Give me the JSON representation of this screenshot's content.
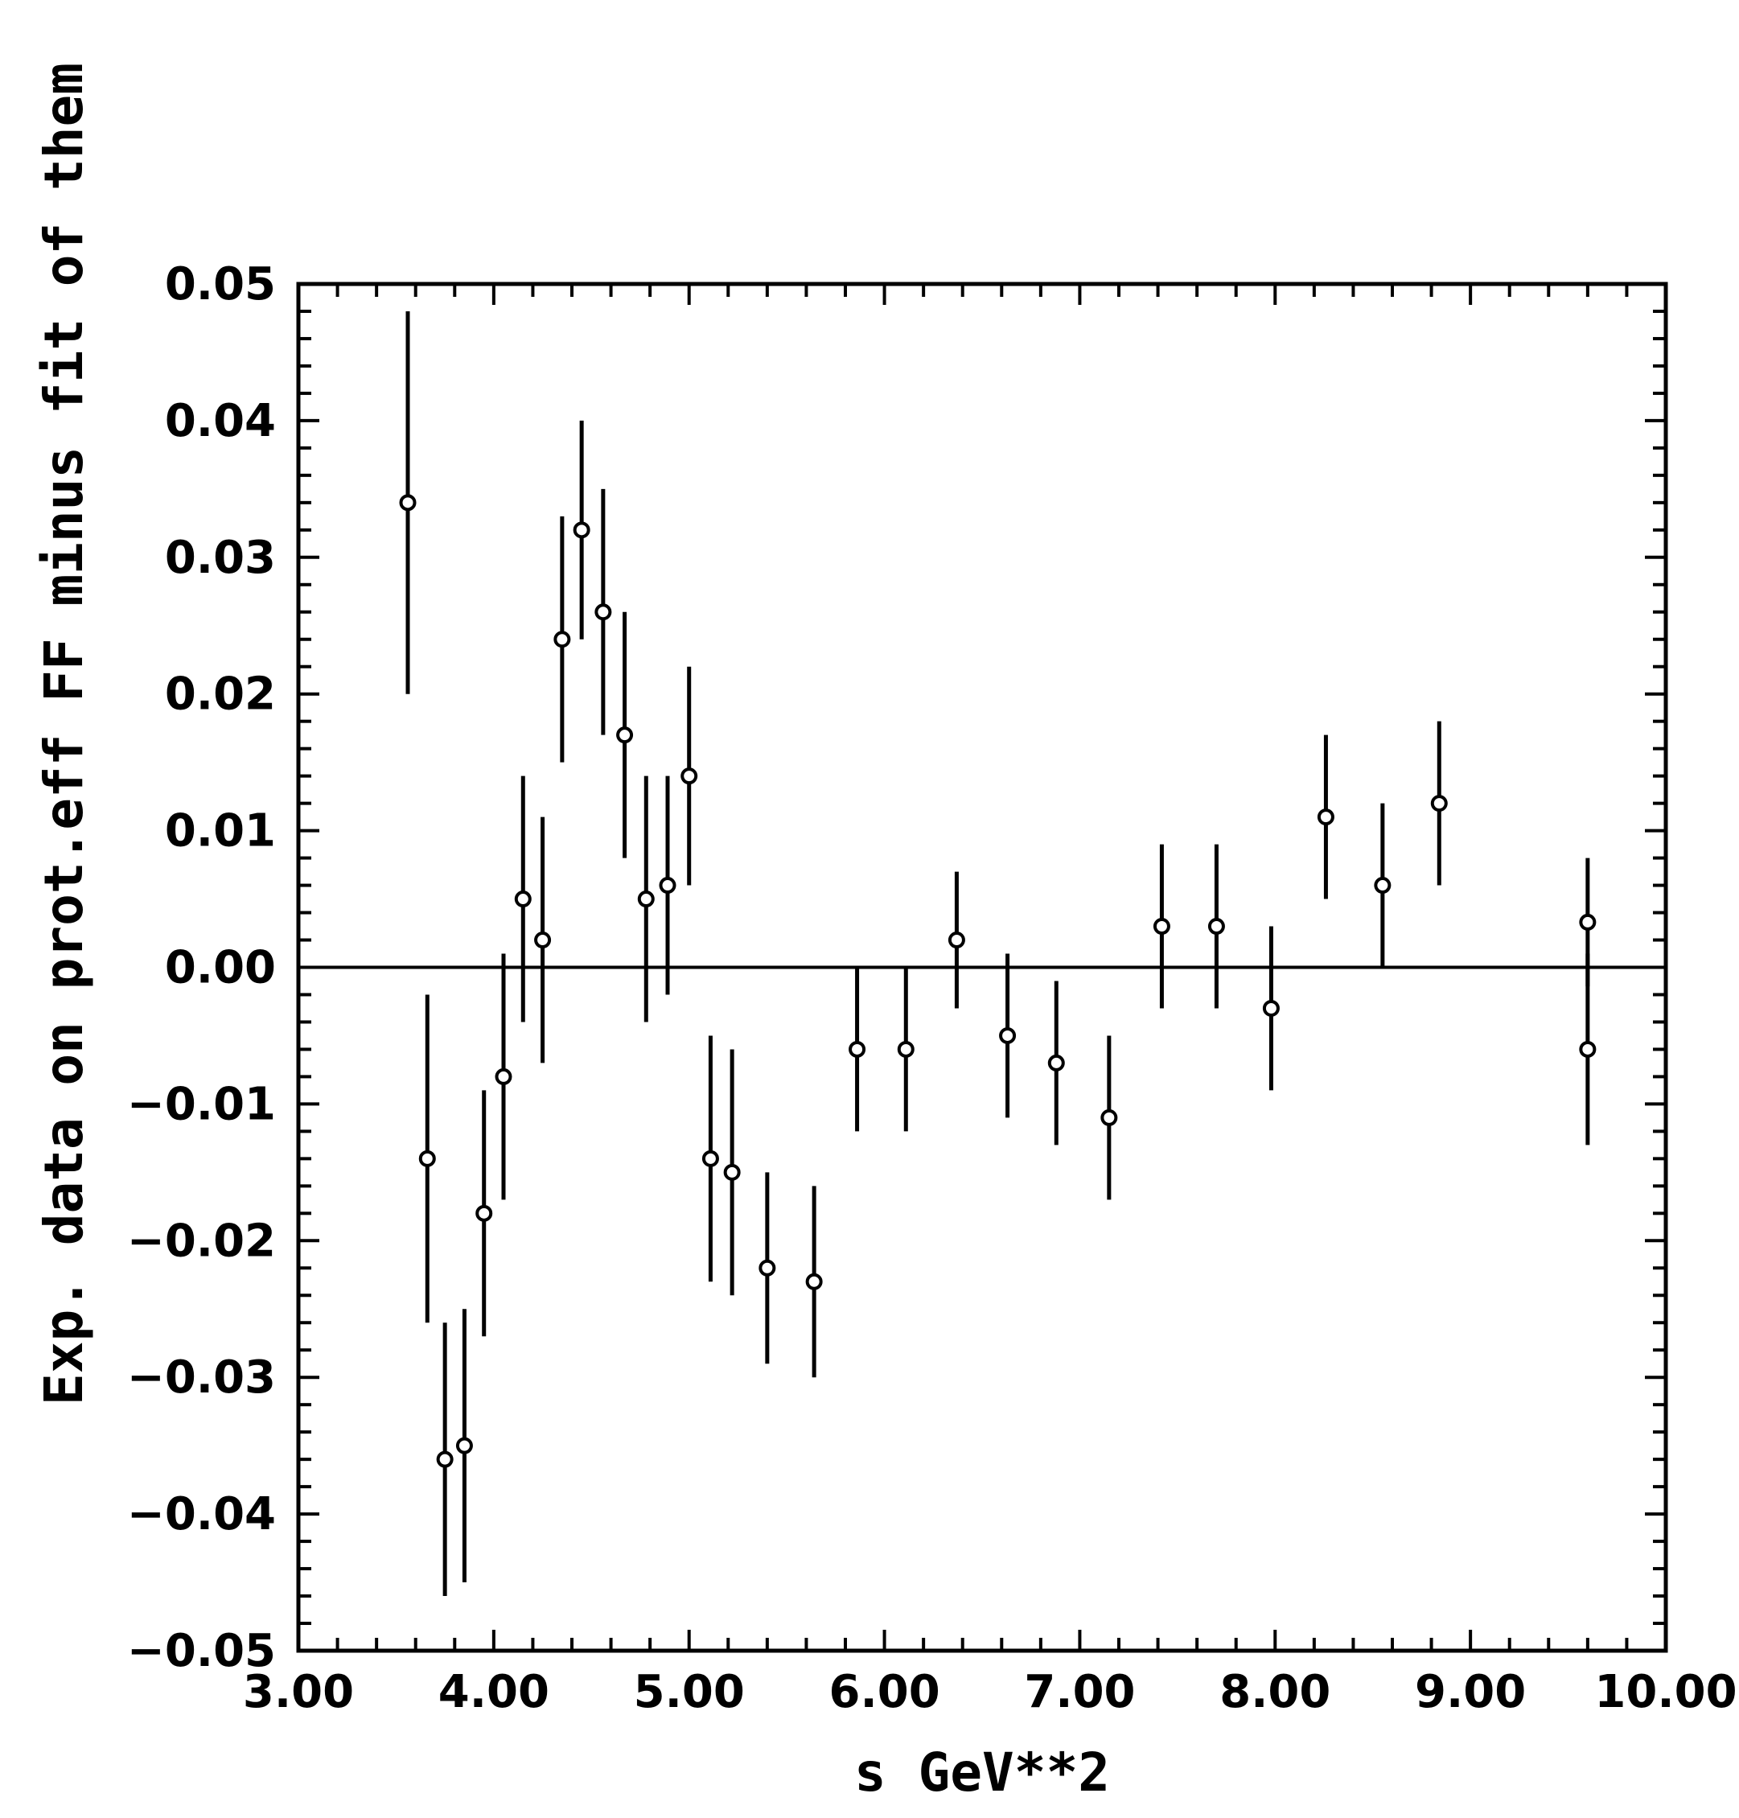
{
  "chart_data": {
    "type": "scatter",
    "xlabel": "s GeV**2",
    "ylabel": "Exp. data on prot.eff FF minus fit of them",
    "xlim": [
      3.0,
      10.0
    ],
    "ylim": [
      -0.05,
      0.05
    ],
    "xticks": [
      "3.00",
      "4.00",
      "5.00",
      "6.00",
      "7.00",
      "8.00",
      "9.00",
      "10.00"
    ],
    "yticks": [
      "0.05",
      "0.04",
      "0.03",
      "0.02",
      "0.01",
      "0.00",
      "−0.01",
      "−0.02",
      "−0.03",
      "−0.04",
      "−0.05"
    ],
    "grid": false,
    "reference_line_y": 0.0,
    "points": [
      {
        "x": 3.56,
        "y": 0.034,
        "err": 0.014
      },
      {
        "x": 3.66,
        "y": -0.014,
        "err": 0.012
      },
      {
        "x": 3.75,
        "y": -0.036,
        "err": 0.01
      },
      {
        "x": 3.85,
        "y": -0.035,
        "err": 0.01
      },
      {
        "x": 3.95,
        "y": -0.018,
        "err": 0.009
      },
      {
        "x": 4.05,
        "y": -0.008,
        "err": 0.009
      },
      {
        "x": 4.15,
        "y": 0.005,
        "err": 0.009
      },
      {
        "x": 4.25,
        "y": 0.002,
        "err": 0.009
      },
      {
        "x": 4.35,
        "y": 0.024,
        "err": 0.009
      },
      {
        "x": 4.45,
        "y": 0.032,
        "err": 0.008
      },
      {
        "x": 4.56,
        "y": 0.026,
        "err": 0.009
      },
      {
        "x": 4.67,
        "y": 0.017,
        "err": 0.009
      },
      {
        "x": 4.78,
        "y": 0.005,
        "err": 0.009
      },
      {
        "x": 4.89,
        "y": 0.006,
        "err": 0.008
      },
      {
        "x": 5.0,
        "y": 0.014,
        "err": 0.008
      },
      {
        "x": 5.11,
        "y": -0.014,
        "err": 0.009
      },
      {
        "x": 5.22,
        "y": -0.015,
        "err": 0.009
      },
      {
        "x": 5.4,
        "y": -0.022,
        "err": 0.007
      },
      {
        "x": 5.64,
        "y": -0.023,
        "err": 0.007
      },
      {
        "x": 5.86,
        "y": -0.006,
        "err": 0.006
      },
      {
        "x": 6.11,
        "y": -0.006,
        "err": 0.006
      },
      {
        "x": 6.37,
        "y": 0.002,
        "err": 0.005
      },
      {
        "x": 6.63,
        "y": -0.005,
        "err": 0.006
      },
      {
        "x": 6.88,
        "y": -0.007,
        "err": 0.006
      },
      {
        "x": 7.15,
        "y": -0.011,
        "err": 0.006
      },
      {
        "x": 7.42,
        "y": 0.003,
        "err": 0.006
      },
      {
        "x": 7.7,
        "y": 0.003,
        "err": 0.006
      },
      {
        "x": 7.98,
        "y": -0.003,
        "err": 0.006
      },
      {
        "x": 8.26,
        "y": 0.011,
        "err": 0.006
      },
      {
        "x": 8.55,
        "y": 0.006,
        "err": 0.006
      },
      {
        "x": 8.84,
        "y": 0.012,
        "err": 0.006
      },
      {
        "x": 9.6,
        "y": 0.0033,
        "err": 0.0047
      },
      {
        "x": 9.6,
        "y": -0.006,
        "err": 0.007
      }
    ]
  }
}
